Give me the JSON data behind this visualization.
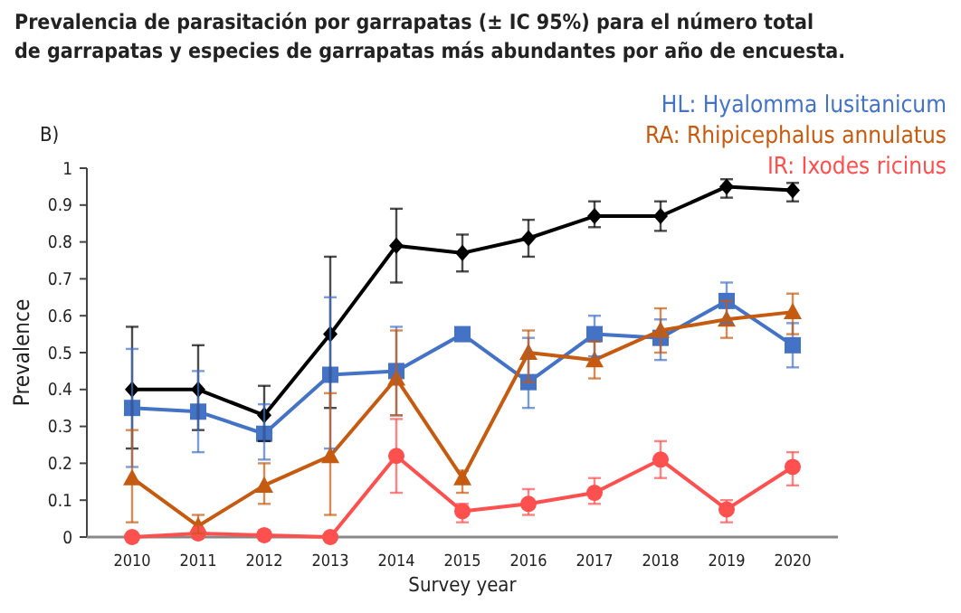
{
  "chart_data": {
    "type": "line",
    "title": "Prevalencia de parasitación por garrapatas (± IC 95%) para el número total de garrapatas y especies de garrapatas más abundantes por año de encuesta.",
    "annotations": [
      "B)"
    ],
    "xlabel": "Survey year",
    "ylabel": "Prevalence",
    "categories": [
      "2010",
      "2011",
      "2012",
      "2013",
      "2014",
      "2015",
      "2016",
      "2017",
      "2018",
      "2019",
      "2020"
    ],
    "ylim": [
      0,
      1
    ],
    "yticks": [
      0,
      0.1,
      0.2,
      0.3,
      0.4,
      0.5,
      0.6,
      0.7,
      0.8,
      0.9,
      1
    ],
    "grid": false,
    "legend": "top right",
    "series": [
      {
        "color": "#000000",
        "marker": "diamond",
        "values": [
          0.4,
          0.4,
          0.33,
          0.55,
          0.79,
          0.77,
          0.81,
          0.87,
          0.87,
          0.95,
          0.94
        ],
        "errors": [
          [
            0.24,
            0.57
          ],
          [
            0.29,
            0.52
          ],
          [
            0.26,
            0.41
          ],
          [
            0.35,
            0.76
          ],
          [
            0.69,
            0.89
          ],
          [
            0.72,
            0.82
          ],
          [
            0.76,
            0.86
          ],
          [
            0.84,
            0.91
          ],
          [
            0.83,
            0.91
          ],
          [
            0.92,
            0.97
          ],
          [
            0.91,
            0.96
          ]
        ]
      },
      {
        "name": "HL: Hyalomma lusitanicum",
        "color": "#4472c4",
        "marker": "square",
        "values": [
          0.35,
          0.34,
          0.28,
          0.44,
          0.45,
          0.55,
          0.42,
          0.55,
          0.54,
          0.64,
          0.52
        ],
        "errors": [
          [
            0.19,
            0.51
          ],
          [
            0.23,
            0.45
          ],
          [
            0.21,
            0.36
          ],
          [
            0.24,
            0.65
          ],
          [
            0.33,
            0.57
          ],
          null,
          [
            0.35,
            0.54
          ],
          [
            0.49,
            0.6
          ],
          [
            0.48,
            0.59
          ],
          [
            0.58,
            0.69
          ],
          [
            0.46,
            0.58
          ]
        ]
      },
      {
        "name": "RA: Rhipicephalus annulatus",
        "color": "#c55a11",
        "marker": "triangle",
        "values": [
          0.16,
          0.03,
          0.14,
          0.22,
          0.43,
          0.16,
          0.5,
          0.48,
          0.56,
          0.59,
          0.61
        ],
        "errors": [
          [
            0.04,
            0.29
          ],
          [
            0.01,
            0.06
          ],
          [
            0.09,
            0.2
          ],
          [
            0.06,
            0.39
          ],
          [
            0.33,
            0.56
          ],
          [
            0.12,
            0.18
          ],
          [
            0.42,
            0.56
          ],
          [
            0.43,
            0.53
          ],
          [
            0.5,
            0.62
          ],
          [
            0.54,
            0.64
          ],
          [
            0.55,
            0.66
          ]
        ]
      },
      {
        "name": "IR: Ixodes ricinus",
        "color": "#ff5050",
        "marker": "circle",
        "values": [
          0,
          0.01,
          0.005,
          0,
          0.22,
          0.07,
          0.09,
          0.12,
          0.21,
          0.075,
          0.19
        ],
        "errors": [
          null,
          null,
          null,
          null,
          [
            0.12,
            0.32
          ],
          [
            0.04,
            0.09
          ],
          [
            0.06,
            0.13
          ],
          [
            0.09,
            0.16
          ],
          [
            0.16,
            0.26
          ],
          [
            0.04,
            0.1
          ],
          [
            0.14,
            0.23
          ]
        ]
      }
    ]
  }
}
